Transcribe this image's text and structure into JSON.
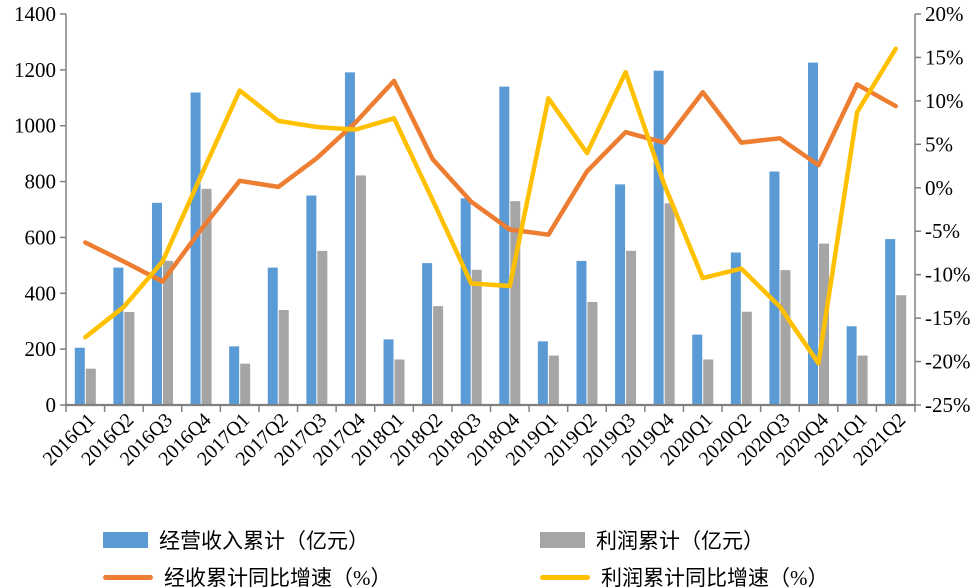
{
  "chart_data": {
    "type": "combo-bar-line",
    "title": "",
    "categories": [
      "2016Q1",
      "2016Q2",
      "2016Q3",
      "2016Q4",
      "2017Q1",
      "2017Q2",
      "2017Q3",
      "2017Q4",
      "2018Q1",
      "2018Q2",
      "2018Q3",
      "2018Q4",
      "2019Q1",
      "2019Q2",
      "2019Q3",
      "2019Q4",
      "2020Q1",
      "2020Q2",
      "2020Q3",
      "2020Q4",
      "2021Q1",
      "2021Q2"
    ],
    "series": [
      {
        "name": "经营收入累计（亿元）",
        "type": "bar",
        "axis": "left",
        "color": "#5B9BD5",
        "values": [
          205,
          492,
          724,
          1119,
          210,
          492,
          750,
          1191,
          235,
          508,
          740,
          1140,
          228,
          516,
          790,
          1197,
          252,
          546,
          836,
          1226,
          282,
          594
        ]
      },
      {
        "name": "利润累计（亿元）",
        "type": "bar",
        "axis": "left",
        "color": "#A5A5A5",
        "values": [
          130,
          333,
          516,
          774,
          148,
          340,
          552,
          822,
          163,
          354,
          484,
          730,
          177,
          369,
          552,
          722,
          163,
          334,
          483,
          578,
          177,
          393
        ]
      },
      {
        "name": "经收累计同比增速（%）",
        "type": "line",
        "axis": "right",
        "color": "#ED7D31",
        "values": [
          -6.3,
          -8.5,
          -10.8,
          -4.8,
          0.8,
          0.1,
          3.4,
          7.5,
          12.3,
          3.3,
          -1.6,
          -4.8,
          -5.4,
          1.9,
          6.4,
          5.2,
          11.0,
          5.2,
          5.7,
          2.6,
          11.9,
          9.4
        ]
      },
      {
        "name": "利润累计同比增速（%）",
        "type": "line",
        "axis": "right",
        "color": "#FFC000",
        "values": [
          -17.2,
          -13.7,
          -8.5,
          1.4,
          11.2,
          7.7,
          7.0,
          6.7,
          8.0,
          -1.4,
          -11.0,
          -11.3,
          10.3,
          4.0,
          13.3,
          0.4,
          -10.4,
          -9.3,
          -13.7,
          -20.2,
          8.7,
          16.0
        ]
      }
    ],
    "left_axis": {
      "min": 0,
      "max": 1400,
      "step": 200,
      "ticks": [
        "0",
        "200",
        "400",
        "600",
        "800",
        "1000",
        "1200",
        "1400"
      ]
    },
    "right_axis": {
      "min": -25,
      "max": 20,
      "step": 5,
      "ticks": [
        "-25%",
        "-20%",
        "-15%",
        "-10%",
        "-5%",
        "0%",
        "5%",
        "10%",
        "15%",
        "20%"
      ]
    },
    "grid": false,
    "legend_position": "bottom",
    "axis_line_color": "#808080"
  }
}
